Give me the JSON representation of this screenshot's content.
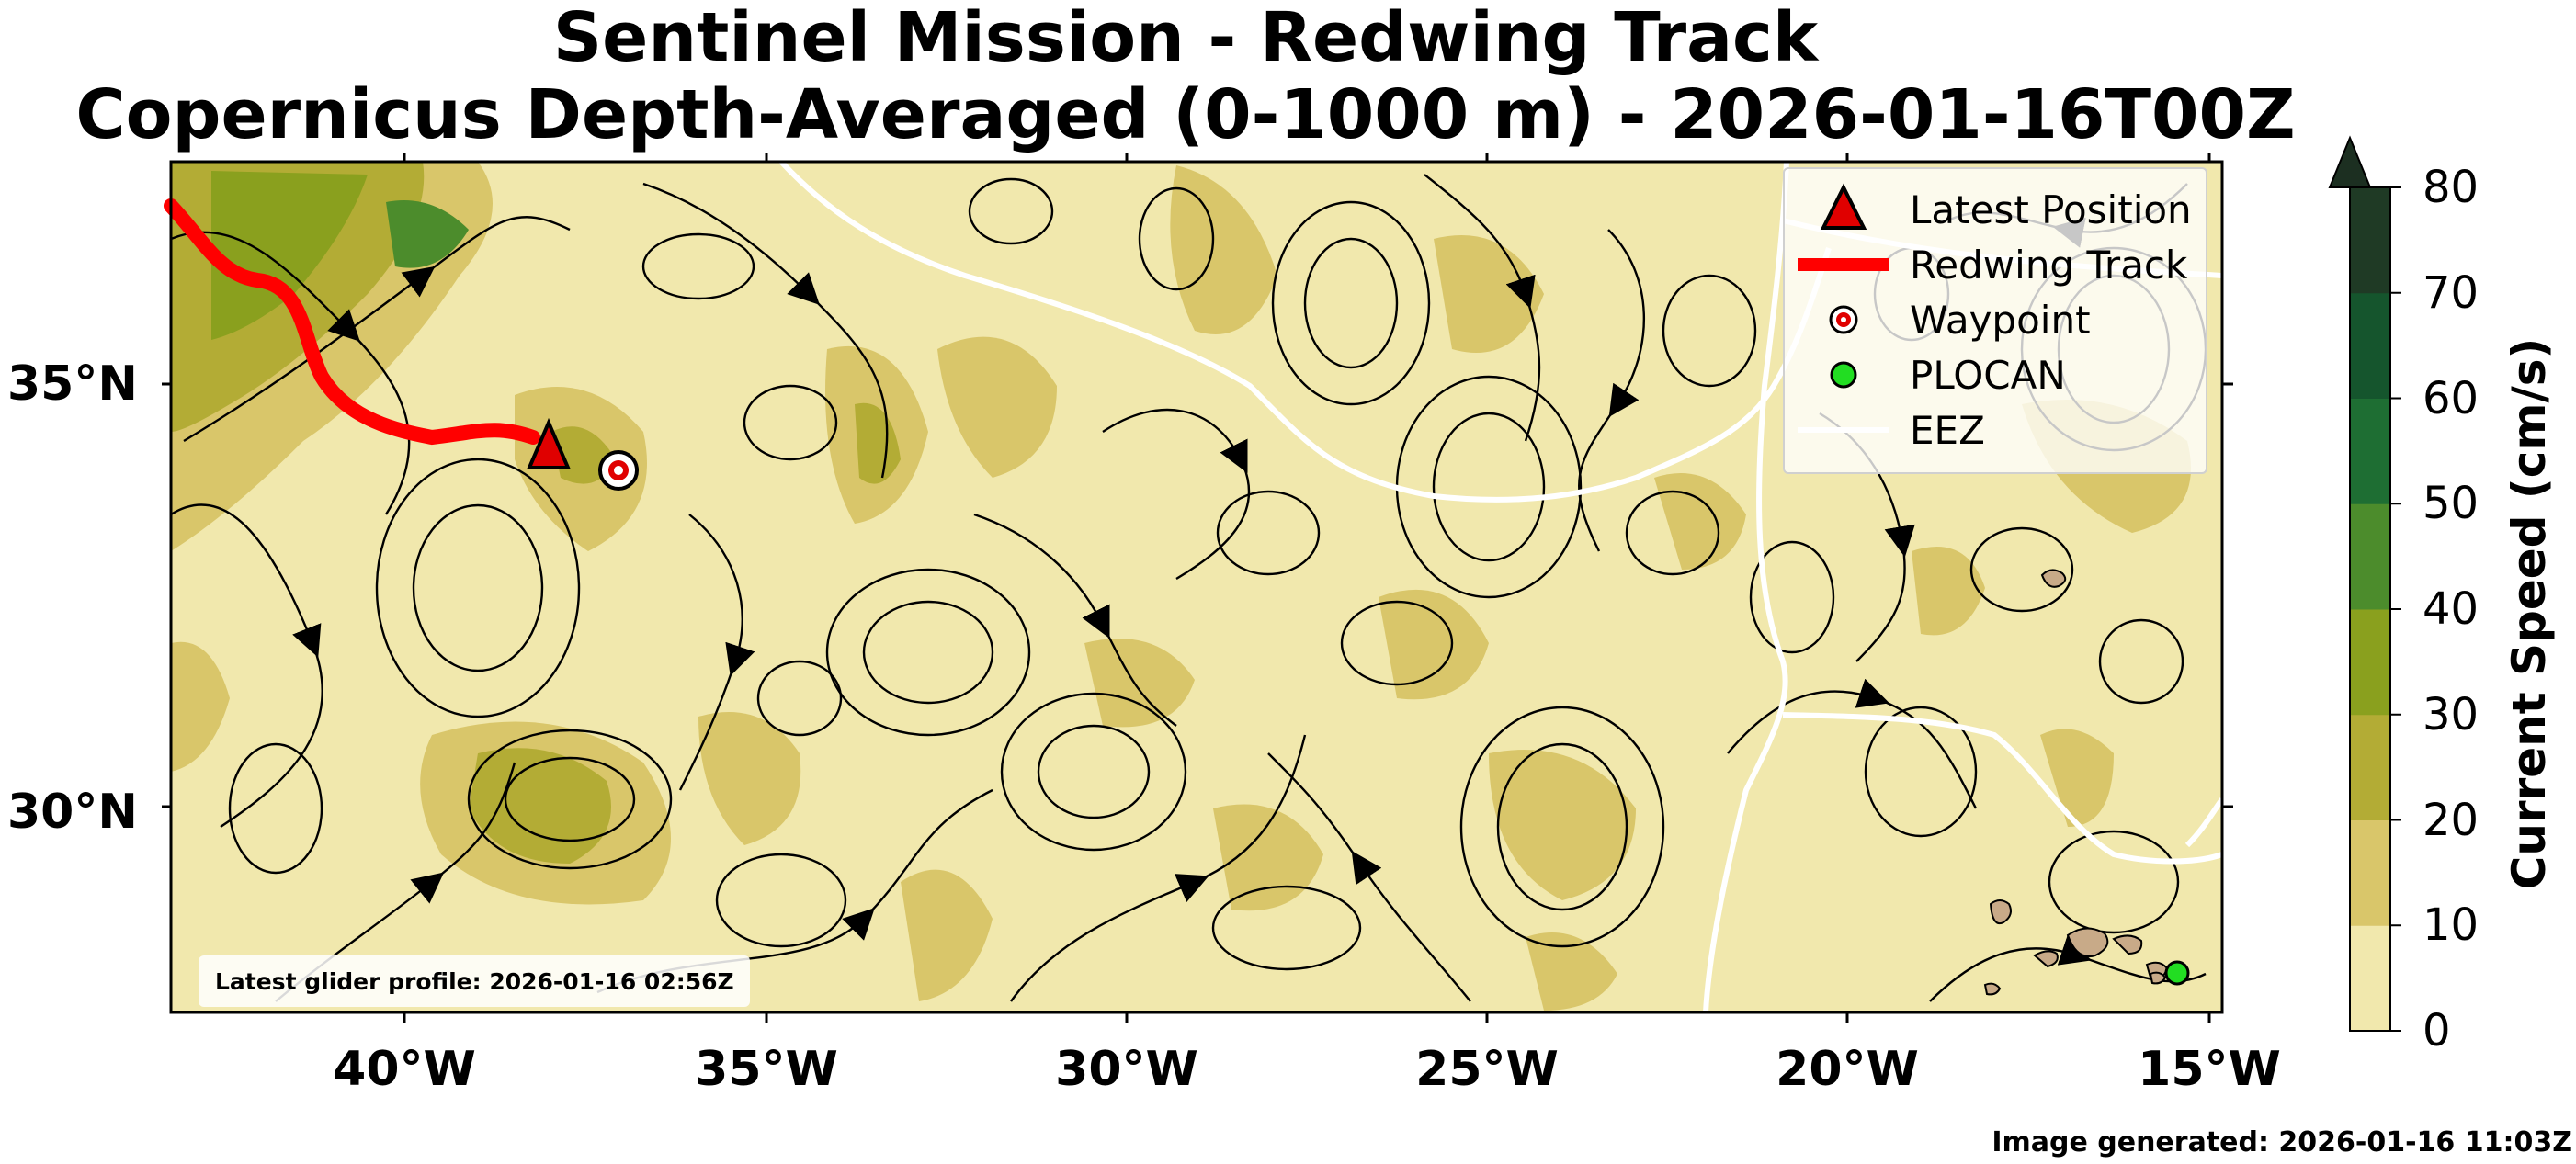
{
  "title": {
    "line1": "Sentinel Mission - Redwing Track",
    "line2": "Copernicus Depth-Averaged (0-1000 m) - 2026-01-16T00Z"
  },
  "axes": {
    "lat_labels": [
      "35°N",
      "30°N"
    ],
    "lon_labels": [
      "40°W",
      "35°W",
      "30°W",
      "25°W",
      "20°W",
      "15°W"
    ]
  },
  "legend": {
    "latest_position": "Latest Position",
    "redwing_track": "Redwing Track",
    "waypoint": "Waypoint",
    "plocan": "PLOCAN",
    "eez": "EEZ"
  },
  "colors": {
    "track": "#ff0000",
    "marker": "#e00000",
    "plocan": "#22dd22",
    "eez": "#ffffff",
    "land": "#c8aa88",
    "ocean_base": "#f1e8ad"
  },
  "colorbar": {
    "title": "Current Speed (cm/s)",
    "ticks": [
      "0",
      "10",
      "20",
      "30",
      "40",
      "50",
      "60",
      "70",
      "80"
    ],
    "colors": [
      "#f1e8ad",
      "#d9c66a",
      "#b3ac35",
      "#8aa01e",
      "#4c8c2c",
      "#1e6e33",
      "#15552d",
      "#1f3a25",
      "#1c2f21"
    ]
  },
  "profile_note": "Latest glider profile: 2026-01-16 02:56Z",
  "generated": "Image generated: 2026-01-16 11:03Z"
}
